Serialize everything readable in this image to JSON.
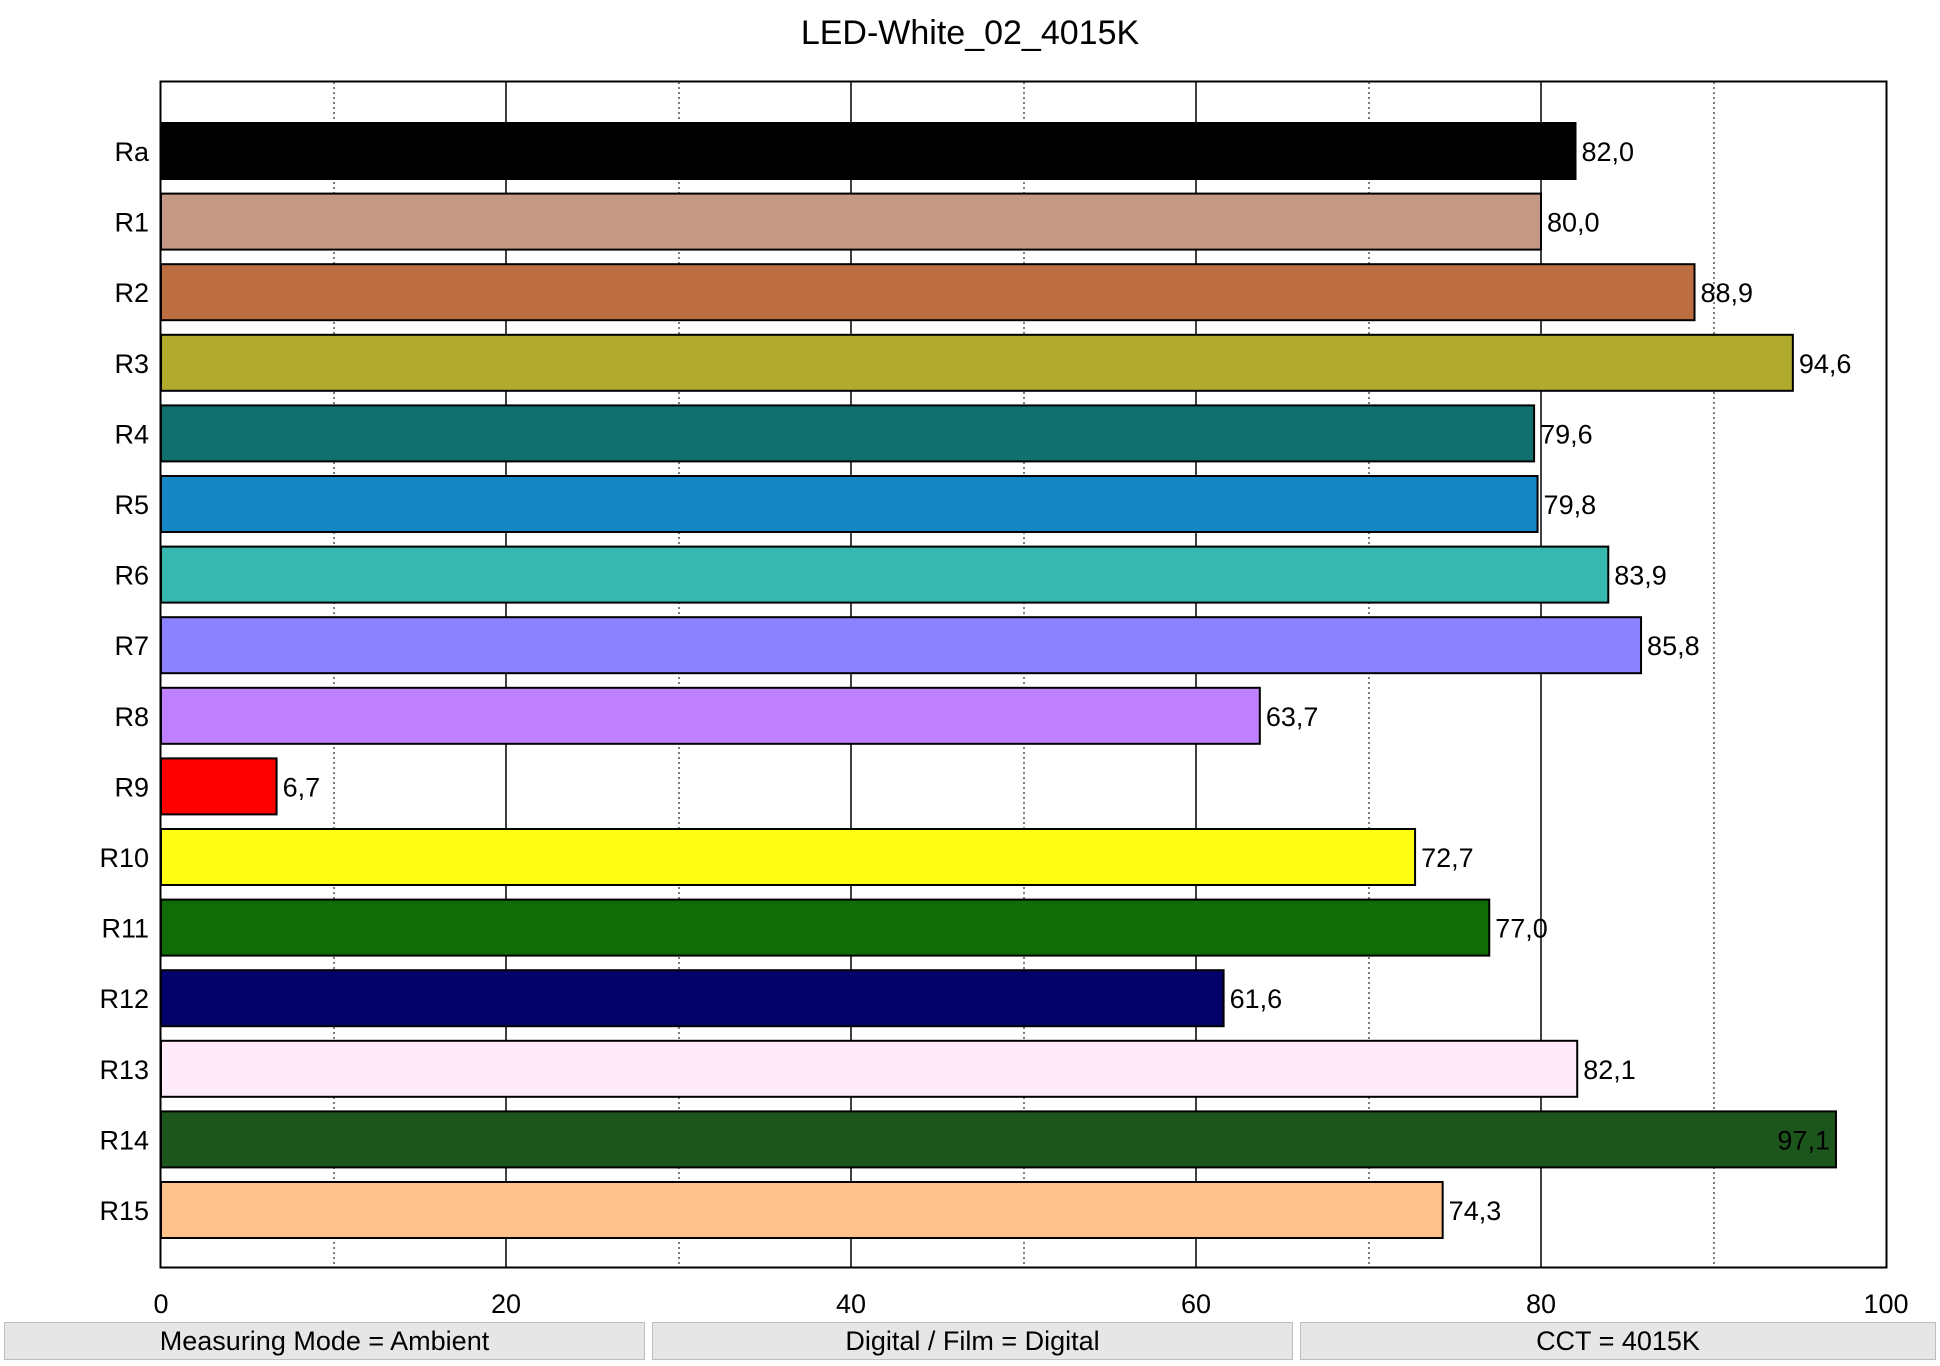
{
  "chart_data": {
    "type": "bar",
    "orientation": "horizontal",
    "title": "LED-White_02_4015K",
    "xlabel": "",
    "ylabel": "",
    "xlim": [
      0,
      100
    ],
    "major_ticks": [
      0,
      20,
      40,
      60,
      80,
      100
    ],
    "minor_grid": [
      10,
      30,
      50,
      70,
      90
    ],
    "grid": true,
    "categories": [
      "Ra",
      "R1",
      "R2",
      "R3",
      "R4",
      "R5",
      "R6",
      "R7",
      "R8",
      "R9",
      "R10",
      "R11",
      "R12",
      "R13",
      "R14",
      "R15"
    ],
    "values": [
      82.0,
      80.0,
      88.9,
      94.6,
      79.6,
      79.8,
      83.9,
      85.8,
      63.7,
      6.7,
      72.7,
      77.0,
      61.6,
      82.1,
      97.1,
      74.3
    ],
    "value_labels": [
      "82,0",
      "80,0",
      "88,9",
      "94,6",
      "79,6",
      "79,8",
      "83,9",
      "85,8",
      "63,7",
      "6,7",
      "72,7",
      "77,0",
      "61,6",
      "82,1",
      "97,1",
      "74,3"
    ],
    "colors": [
      "#000000",
      "#c49884",
      "#bd6e40",
      "#b0ab2c",
      "#11706d",
      "#1587c4",
      "#37b8ae",
      "#8b82ff",
      "#bf80ff",
      "#ff0000",
      "#ffff14",
      "#116b06",
      "#02026a",
      "#ffeafa",
      "#1d561d",
      "#ffc28a"
    ]
  },
  "status": {
    "measuring_mode": "Measuring Mode = Ambient",
    "digital_film": "Digital / Film = Digital",
    "cct": "CCT = 4015K"
  }
}
